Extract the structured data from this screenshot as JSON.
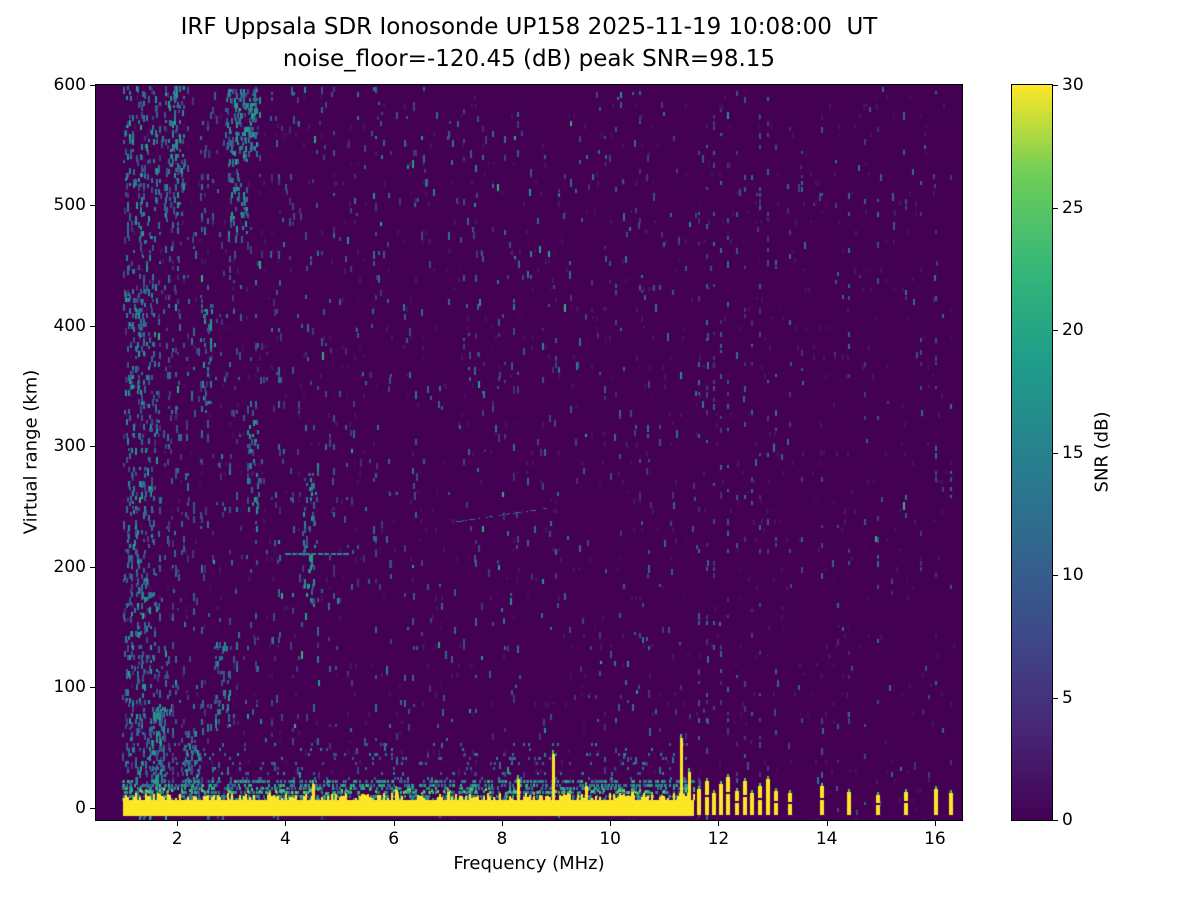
{
  "colors": {
    "background": "#ffffff",
    "axis": "#000000",
    "colormap_min": "#440154",
    "colormap_max": "#fde725"
  },
  "chart_data": {
    "type": "heatmap",
    "title_line1": "IRF Uppsala SDR Ionosonde UP158 2025-11-19 10:08:00  UT",
    "title_line2": "noise_floor=-120.45 (dB) peak SNR=98.15",
    "station": "UP158",
    "timestamp_ut": "2025-11-19 10:08:00",
    "noise_floor_db": -120.45,
    "peak_snr_db": 98.15,
    "xlabel": "Frequency (MHz)",
    "ylabel": "Virtual range (km)",
    "xlim": [
      0.5,
      16.5
    ],
    "ylim": [
      -10,
      600
    ],
    "xticks": [
      2,
      4,
      6,
      8,
      10,
      12,
      14,
      16
    ],
    "yticks": [
      0,
      100,
      200,
      300,
      400,
      500,
      600
    ],
    "colormap": "viridis",
    "colorbar": {
      "label": "SNR (dB)",
      "ticks": [
        0,
        5,
        10,
        15,
        20,
        25,
        30
      ],
      "vmin": 0,
      "vmax": 30
    },
    "data_extent_mhz": [
      1.0,
      16.35
    ],
    "features": {
      "ground_return_band": {
        "f0": 1.0,
        "f1": 11.55,
        "km_low": -6,
        "km_high": 7,
        "snr_db": 30
      },
      "ground_spikes": [
        {
          "f": 4.5,
          "top_km": 20
        },
        {
          "f": 6.05,
          "top_km": 15
        },
        {
          "f": 7.0,
          "top_km": 13
        },
        {
          "f": 8.3,
          "top_km": 24
        },
        {
          "f": 8.95,
          "top_km": 45
        },
        {
          "f": 9.55,
          "top_km": 18
        },
        {
          "f": 10.4,
          "top_km": 13
        },
        {
          "f": 11.3,
          "top_km": 58
        },
        {
          "f": 11.45,
          "top_km": 30
        }
      ],
      "rf_bursts": [
        {
          "f": 11.65,
          "top_km": 16
        },
        {
          "f": 11.78,
          "top_km": 22
        },
        {
          "f": 11.91,
          "top_km": 12
        },
        {
          "f": 12.04,
          "top_km": 20
        },
        {
          "f": 12.17,
          "top_km": 26
        },
        {
          "f": 12.34,
          "top_km": 14
        },
        {
          "f": 12.49,
          "top_km": 22
        },
        {
          "f": 12.62,
          "top_km": 12
        },
        {
          "f": 12.77,
          "top_km": 18
        },
        {
          "f": 12.92,
          "top_km": 24
        },
        {
          "f": 13.07,
          "top_km": 14
        },
        {
          "f": 13.33,
          "top_km": 12
        },
        {
          "f": 13.92,
          "top_km": 18
        },
        {
          "f": 14.42,
          "top_km": 13
        },
        {
          "f": 14.95,
          "top_km": 11
        },
        {
          "f": 15.47,
          "top_km": 13
        },
        {
          "f": 16.02,
          "top_km": 16
        },
        {
          "f": 16.3,
          "top_km": 12
        }
      ],
      "interference_columns": [
        {
          "f": 5.95,
          "p": 0.05
        },
        {
          "f": 7.3,
          "p": 0.05
        },
        {
          "f": 8.05,
          "p": 0.05
        },
        {
          "f": 9.0,
          "p": 0.06
        },
        {
          "f": 10.1,
          "p": 0.05
        },
        {
          "f": 10.55,
          "p": 0.05
        },
        {
          "f": 11.65,
          "p": 0.14
        },
        {
          "f": 11.78,
          "p": 0.12
        },
        {
          "f": 11.91,
          "p": 0.14
        },
        {
          "f": 12.04,
          "p": 0.12
        },
        {
          "f": 12.17,
          "p": 0.16
        },
        {
          "f": 12.34,
          "p": 0.1
        },
        {
          "f": 12.49,
          "p": 0.14
        },
        {
          "f": 12.62,
          "p": 0.1
        },
        {
          "f": 12.77,
          "p": 0.12
        },
        {
          "f": 12.92,
          "p": 0.14
        },
        {
          "f": 13.07,
          "p": 0.1
        },
        {
          "f": 13.33,
          "p": 0.08
        },
        {
          "f": 13.55,
          "p": 0.07
        },
        {
          "f": 13.92,
          "p": 0.1
        },
        {
          "f": 14.2,
          "p": 0.06
        },
        {
          "f": 14.42,
          "p": 0.09
        },
        {
          "f": 14.7,
          "p": 0.05
        },
        {
          "f": 14.95,
          "p": 0.08
        },
        {
          "f": 15.2,
          "p": 0.05
        },
        {
          "f": 15.47,
          "p": 0.08
        },
        {
          "f": 15.75,
          "p": 0.05
        },
        {
          "f": 16.02,
          "p": 0.08
        },
        {
          "f": 16.3,
          "p": 0.07
        }
      ],
      "echo_traces": [
        {
          "f0": 4.0,
          "f1": 5.15,
          "km0": 212,
          "km1": 212,
          "style": "dashed"
        },
        {
          "f0": 7.15,
          "f1": 8.8,
          "km0": 238,
          "km1": 249,
          "style": "faint"
        }
      ],
      "speckle_patches": [
        {
          "f0": 2.9,
          "f1": 3.5,
          "km0": 545,
          "km1": 598,
          "p": 0.32
        },
        {
          "f0": 2.95,
          "f1": 3.3,
          "km0": 475,
          "km1": 545,
          "p": 0.16
        },
        {
          "f0": 1.8,
          "f1": 2.15,
          "km0": 495,
          "km1": 600,
          "p": 0.22
        },
        {
          "f0": 1.05,
          "f1": 1.65,
          "km0": -5,
          "km1": 600,
          "p": 0.1
        },
        {
          "f0": 1.5,
          "f1": 1.8,
          "km0": 0,
          "km1": 85,
          "p": 0.3
        },
        {
          "f0": 2.15,
          "f1": 2.45,
          "km0": 0,
          "km1": 65,
          "p": 0.22
        },
        {
          "f0": 2.7,
          "f1": 3.0,
          "km0": 70,
          "km1": 140,
          "p": 0.16
        },
        {
          "f0": 4.35,
          "f1": 4.6,
          "km0": 170,
          "km1": 280,
          "p": 0.14
        },
        {
          "f0": 3.3,
          "f1": 3.55,
          "km0": 250,
          "km1": 340,
          "p": 0.12
        },
        {
          "f0": 2.45,
          "f1": 2.7,
          "km0": 330,
          "km1": 430,
          "p": 0.12
        }
      ],
      "noise_speckle": {
        "seed": 158,
        "regions": [
          {
            "f0": 1.0,
            "f1": 1.6,
            "p": 0.055
          },
          {
            "f0": 1.6,
            "f1": 2.3,
            "p": 0.04
          },
          {
            "f0": 2.3,
            "f1": 3.2,
            "p": 0.028
          },
          {
            "f0": 3.2,
            "f1": 5.3,
            "p": 0.02
          },
          {
            "f0": 5.3,
            "f1": 8.0,
            "p": 0.012
          },
          {
            "f0": 8.0,
            "f1": 11.6,
            "p": 0.01
          },
          {
            "f0": 11.6,
            "f1": 16.35,
            "p": 0.003
          }
        ]
      }
    }
  }
}
